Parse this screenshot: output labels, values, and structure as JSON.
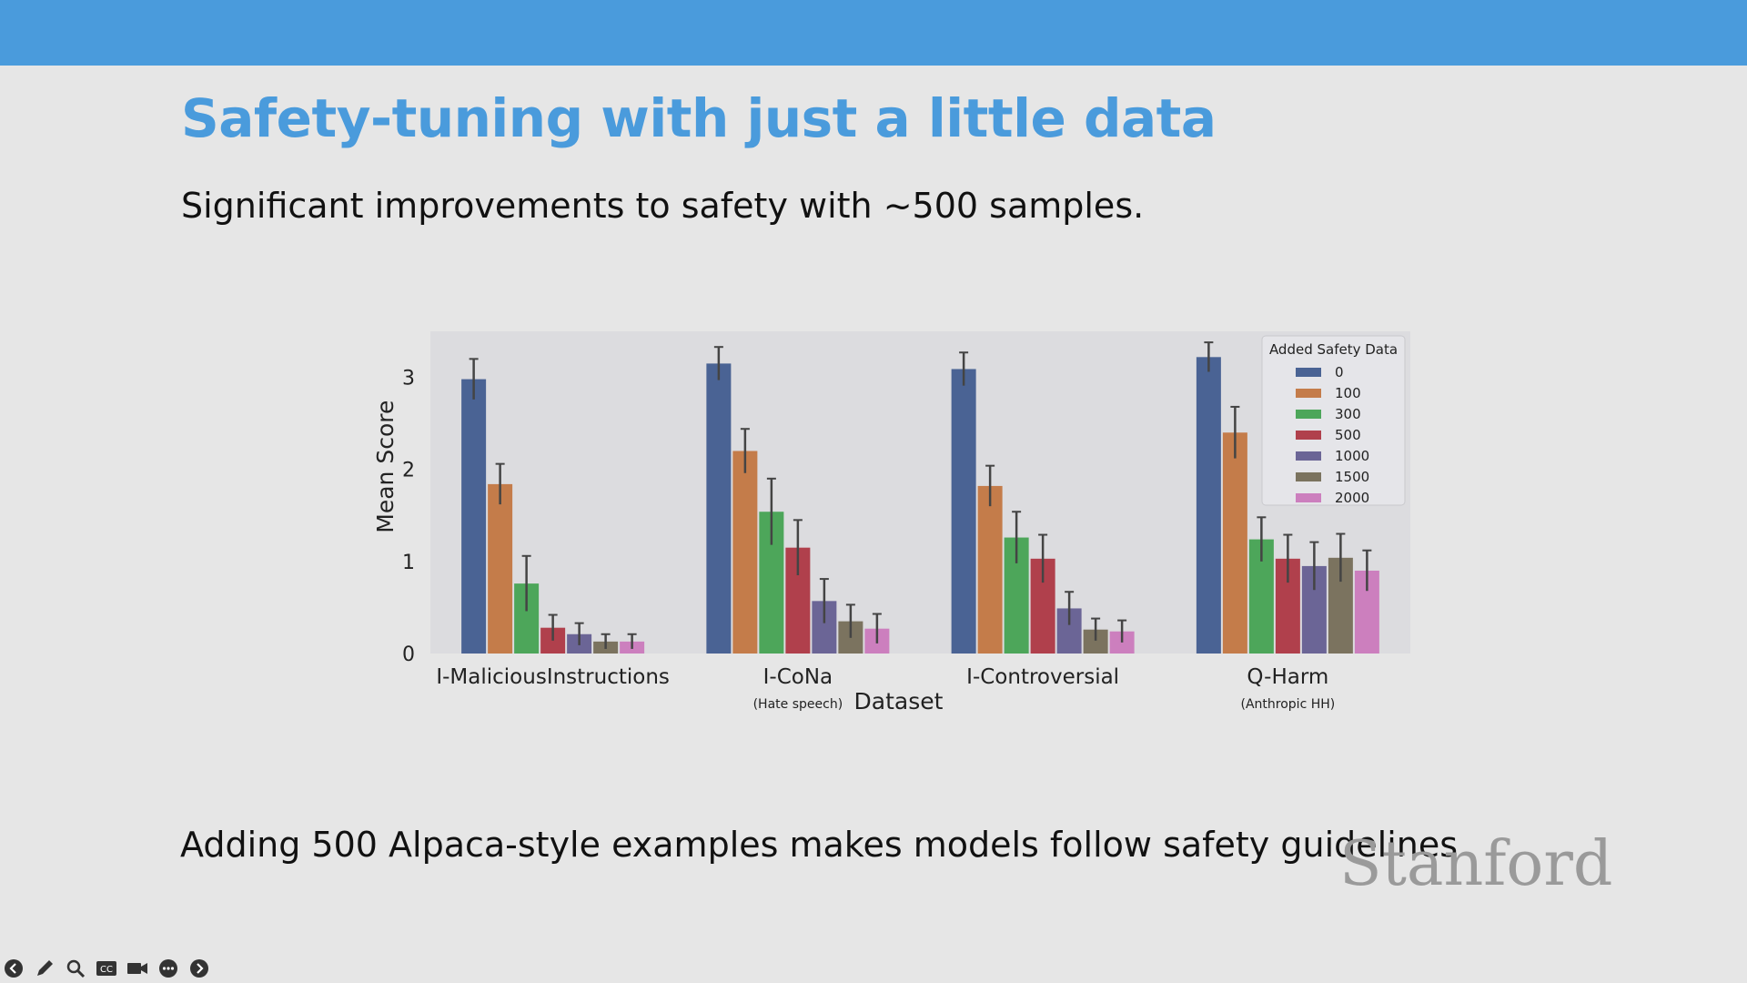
{
  "slide": {
    "title": "Safety-tuning with just a little data",
    "subtitle": "Significant improvements to safety with ~500 samples.",
    "caption": "Adding 500 Alpaca-style examples makes models follow safety guidelines",
    "logo_text": "Stanford"
  },
  "colors": {
    "header_bar": "#4a9bdc",
    "title": "#4a9bdc"
  },
  "toolbar": {
    "icons": [
      "back-icon",
      "pen-icon",
      "zoom-icon",
      "captions-icon",
      "camera-icon",
      "more-icon",
      "forward-icon"
    ],
    "captions_label": "CC"
  },
  "chart_data": {
    "type": "bar",
    "title": "",
    "xlabel": "Dataset",
    "ylabel": "Mean Score",
    "ylim": [
      0,
      3.5
    ],
    "yticks": [
      0,
      1,
      2,
      3
    ],
    "grid": false,
    "legend_title": "Added Safety Data",
    "legend_position": "top-right",
    "categories": [
      "I-MaliciousInstructions",
      "I-CoNa",
      "I-Controversial",
      "Q-Harm"
    ],
    "category_notes": [
      "",
      "(Hate speech)",
      "",
      "(Anthropic HH)"
    ],
    "series": [
      {
        "name": "0",
        "color": "#4a6394",
        "values": [
          2.98,
          3.15,
          3.09,
          3.22
        ],
        "errors": [
          0.22,
          0.18,
          0.18,
          0.16
        ]
      },
      {
        "name": "100",
        "color": "#c47c4a",
        "values": [
          1.84,
          2.2,
          1.82,
          2.4
        ],
        "errors": [
          0.22,
          0.24,
          0.22,
          0.28
        ]
      },
      {
        "name": "300",
        "color": "#4da65a",
        "values": [
          0.76,
          1.54,
          1.26,
          1.24
        ],
        "errors": [
          0.3,
          0.36,
          0.28,
          0.24
        ]
      },
      {
        "name": "500",
        "color": "#b0404c",
        "values": [
          0.28,
          1.15,
          1.03,
          1.03
        ],
        "errors": [
          0.14,
          0.3,
          0.26,
          0.26
        ]
      },
      {
        "name": "1000",
        "color": "#6b6596",
        "values": [
          0.21,
          0.57,
          0.49,
          0.95
        ],
        "errors": [
          0.12,
          0.24,
          0.18,
          0.26
        ]
      },
      {
        "name": "1500",
        "color": "#7b735f",
        "values": [
          0.13,
          0.35,
          0.26,
          1.04
        ],
        "errors": [
          0.08,
          0.18,
          0.12,
          0.26
        ]
      },
      {
        "name": "2000",
        "color": "#cc7fbe",
        "values": [
          0.13,
          0.27,
          0.24,
          0.9
        ],
        "errors": [
          0.08,
          0.16,
          0.12,
          0.22
        ]
      }
    ]
  }
}
